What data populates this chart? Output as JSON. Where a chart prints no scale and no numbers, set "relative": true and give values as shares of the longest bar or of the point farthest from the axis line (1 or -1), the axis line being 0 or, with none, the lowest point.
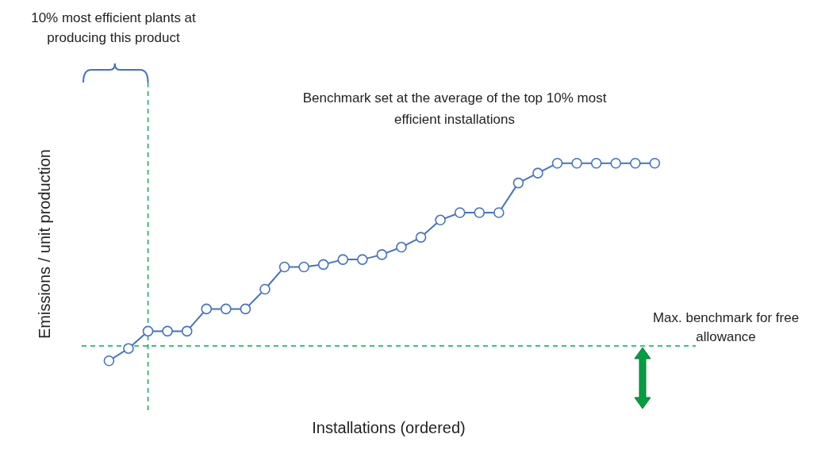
{
  "chart_data": {
    "type": "line",
    "relative": true,
    "xlabel": "Installations (ordered)",
    "ylabel": "Emissions / unit production",
    "categories": [
      null,
      null,
      null,
      null,
      null,
      null,
      null,
      null,
      null,
      null,
      null,
      null,
      null,
      null,
      null,
      null,
      null,
      null,
      null,
      null,
      null,
      null,
      null,
      null,
      null,
      null,
      null,
      null,
      null
    ],
    "marker": "circle",
    "line_style": "solid",
    "series": [
      {
        "color": "#4472c4",
        "values": [
          0.2,
          0.25,
          0.32,
          0.32,
          0.32,
          0.41,
          0.41,
          0.41,
          0.49,
          0.58,
          0.58,
          0.59,
          0.61,
          0.61,
          0.63,
          0.66,
          0.7,
          0.77,
          0.8,
          0.8,
          0.8,
          0.92,
          0.96,
          1,
          1,
          1,
          1,
          1,
          1
        ]
      }
    ],
    "ref_lines": [
      {
        "axis": "y",
        "value": 0.26,
        "label": "Max. benchmark for free allowance",
        "color": "#00b050",
        "line_style": "dashed"
      }
    ],
    "annotations": [
      "10% most efficient plants at producing this product",
      "Benchmark set at the average of the top 10% most efficient installations"
    ]
  }
}
